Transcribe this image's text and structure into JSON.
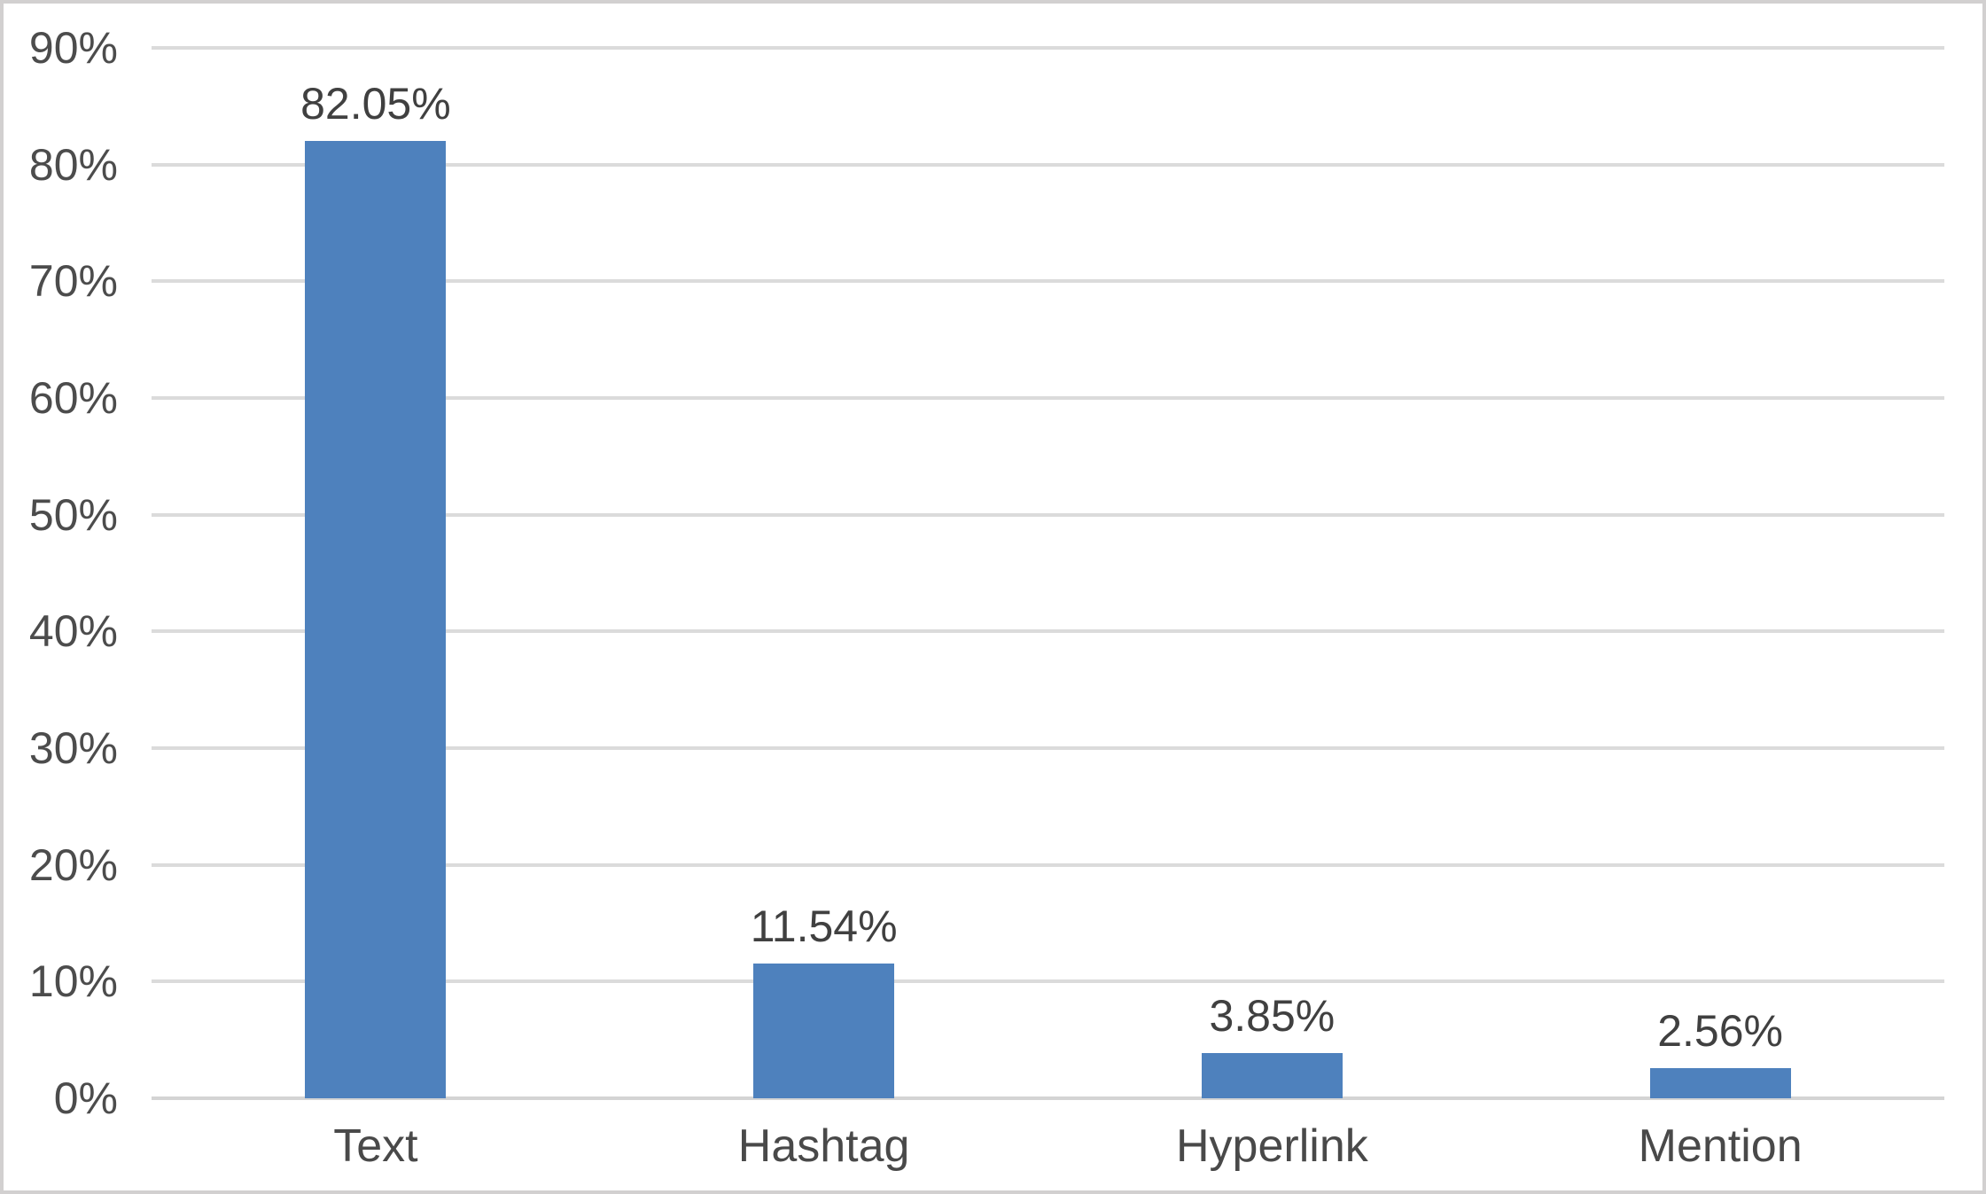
{
  "chart_data": {
    "type": "bar",
    "categories": [
      "Text",
      "Hashtag",
      "Hyperlink",
      "Mention"
    ],
    "values": [
      82.05,
      11.54,
      3.85,
      2.56
    ],
    "value_labels": [
      "82.05%",
      "11.54%",
      "3.85%",
      "2.56%"
    ],
    "title": "",
    "xlabel": "",
    "ylabel": "",
    "ylim": [
      0,
      90
    ],
    "ytick_step": 10,
    "ytick_labels": [
      "0%",
      "10%",
      "20%",
      "30%",
      "40%",
      "50%",
      "60%",
      "70%",
      "80%",
      "90%"
    ],
    "grid": true,
    "legend": false,
    "colors": {
      "bar": "#4E81BD",
      "gridline": "#DBDBDB",
      "axis_line": "#D4D4D4",
      "frame_border": "#D2D0D0",
      "tick_text": "#4C4C4C",
      "value_text": "#404040",
      "category_text": "#494949",
      "background": "#FFFFFF"
    }
  }
}
